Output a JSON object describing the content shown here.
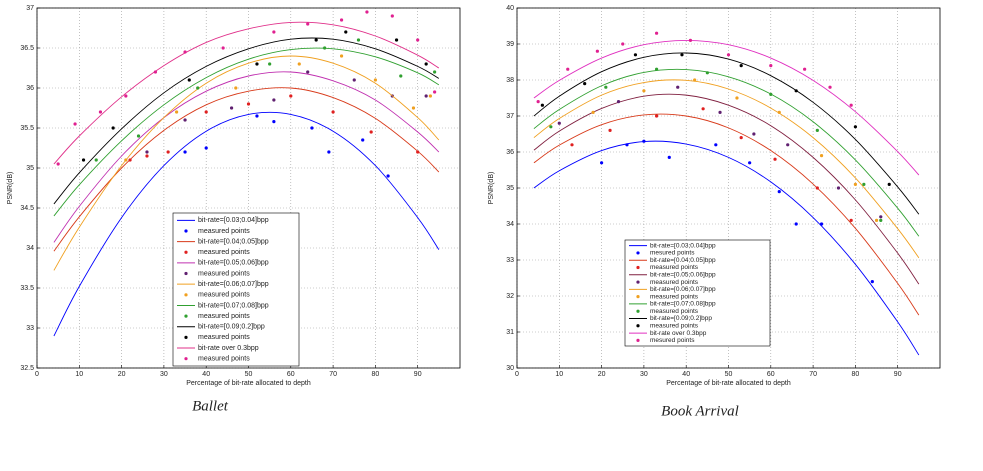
{
  "chart_data": [
    {
      "type": "line",
      "caption": "Ballet",
      "xlabel": "Percentage of bit-rate allocated to depth",
      "ylabel": "PSNR(dB)",
      "xlim": [
        0,
        100
      ],
      "xticks": [
        0,
        10,
        20,
        30,
        40,
        50,
        60,
        70,
        80,
        90
      ],
      "ylim": [
        32.5,
        37
      ],
      "yticks": [
        32.5,
        33,
        33.5,
        34,
        34.5,
        35,
        35.5,
        36,
        36.5,
        37
      ],
      "grid": true,
      "series": [
        {
          "name": "bit-rate=[0.03;0.04]bpp",
          "type": "line",
          "color": "#0000ff",
          "x": [
            4,
            10,
            20,
            30,
            40,
            50,
            60,
            70,
            80,
            90,
            95
          ],
          "values": [
            32.9,
            33.52,
            34.38,
            35.03,
            35.46,
            35.67,
            35.67,
            35.46,
            35.03,
            34.38,
            33.98
          ]
        },
        {
          "name": "measured points",
          "type": "scatter",
          "color": "#0000ff",
          "x": [
            35,
            40,
            52,
            56,
            65,
            69,
            77,
            83
          ],
          "values": [
            35.2,
            35.25,
            35.65,
            35.58,
            35.5,
            35.2,
            35.35,
            34.9
          ]
        },
        {
          "name": "bit-rate=[0.04;0.05]bpp",
          "type": "line",
          "color": "#d83a1a",
          "x": [
            4,
            10,
            20,
            30,
            40,
            50,
            60,
            70,
            80,
            90,
            95
          ],
          "values": [
            33.96,
            34.39,
            35.0,
            35.47,
            35.79,
            35.96,
            36.0,
            35.88,
            35.62,
            35.21,
            34.95
          ]
        },
        {
          "name": "measured points",
          "type": "scatter",
          "color": "#e02020",
          "x": [
            22,
            26,
            31,
            40,
            50,
            60,
            70,
            79,
            90
          ],
          "values": [
            35.1,
            35.15,
            35.2,
            35.7,
            35.8,
            35.9,
            35.7,
            35.45,
            35.2
          ]
        },
        {
          "name": "bit-rate=[0.05;0.06]bpp",
          "type": "line",
          "color": "#c030b0",
          "x": [
            4,
            10,
            20,
            30,
            40,
            50,
            60,
            70,
            80,
            90,
            95
          ],
          "values": [
            34.07,
            34.52,
            35.15,
            35.63,
            35.96,
            36.15,
            36.2,
            36.09,
            35.85,
            35.45,
            35.2
          ]
        },
        {
          "name": "measured points",
          "type": "scatter",
          "color": "#602070",
          "x": [
            26,
            35,
            46,
            56,
            64,
            75,
            84,
            92
          ],
          "values": [
            35.2,
            35.6,
            35.75,
            35.85,
            36.2,
            36.1,
            35.9,
            35.9
          ]
        },
        {
          "name": "bit-rate=[0.06;0.07]bpp",
          "type": "line",
          "color": "#f0a020",
          "x": [
            4,
            10,
            20,
            30,
            40,
            50,
            60,
            70,
            80,
            90,
            95
          ],
          "values": [
            33.72,
            34.26,
            35.03,
            35.63,
            36.06,
            36.31,
            36.4,
            36.31,
            36.06,
            35.63,
            35.35
          ]
        },
        {
          "name": "measured points",
          "type": "scatter",
          "color": "#f0a020",
          "x": [
            21,
            33,
            47,
            62,
            72,
            80,
            89,
            93
          ],
          "values": [
            35.1,
            35.7,
            36.0,
            36.3,
            36.4,
            36.1,
            35.75,
            35.9
          ]
        },
        {
          "name": "bit-rate=[0.07;0.08]bpp",
          "type": "line",
          "color": "#30a030",
          "x": [
            4,
            10,
            20,
            30,
            40,
            50,
            60,
            70,
            80,
            90,
            95
          ],
          "values": [
            34.4,
            34.79,
            35.34,
            35.79,
            36.13,
            36.36,
            36.48,
            36.49,
            36.39,
            36.19,
            36.04
          ]
        },
        {
          "name": "measured points",
          "type": "scatter",
          "color": "#30a030",
          "x": [
            14,
            24,
            38,
            55,
            68,
            76,
            86,
            94
          ],
          "values": [
            35.1,
            35.4,
            36.0,
            36.3,
            36.5,
            36.6,
            36.15,
            36.2
          ]
        },
        {
          "name": "bit-rate=[0.09;0.2]bpp",
          "type": "line",
          "color": "#000000",
          "x": [
            4,
            10,
            20,
            30,
            40,
            50,
            60,
            70,
            80,
            90,
            95
          ],
          "values": [
            34.55,
            34.94,
            35.49,
            35.94,
            36.27,
            36.49,
            36.61,
            36.61,
            36.49,
            36.27,
            36.12
          ]
        },
        {
          "name": "measured points",
          "type": "scatter",
          "color": "#000000",
          "x": [
            11,
            18,
            36,
            52,
            66,
            73,
            85,
            92
          ],
          "values": [
            35.1,
            35.5,
            36.1,
            36.3,
            36.6,
            36.7,
            36.6,
            36.3
          ]
        },
        {
          "name": "bit-rate over 0.3bpp",
          "type": "line",
          "color": "#e0308a",
          "x": [
            4,
            10,
            20,
            30,
            40,
            50,
            60,
            70,
            80,
            90,
            95
          ],
          "values": [
            35.05,
            35.4,
            35.89,
            36.28,
            36.57,
            36.74,
            36.82,
            36.79,
            36.65,
            36.41,
            36.25
          ]
        },
        {
          "name": "measured points",
          "type": "scatter",
          "color": "#e02090",
          "x": [
            5,
            9,
            15,
            21,
            28,
            35,
            44,
            56,
            64,
            72,
            78,
            84,
            90,
            94
          ],
          "values": [
            35.05,
            35.55,
            35.7,
            35.9,
            36.2,
            36.45,
            36.5,
            36.7,
            36.8,
            36.85,
            36.95,
            36.9,
            36.6,
            35.95
          ]
        }
      ]
    },
    {
      "type": "line",
      "caption": "Book Arrival",
      "xlabel": "Percentage of bit-rate allocated to depth",
      "ylabel": "PSNR(dB)",
      "xlim": [
        0,
        100
      ],
      "xticks": [
        0,
        10,
        20,
        30,
        40,
        50,
        60,
        70,
        80,
        90
      ],
      "ylim": [
        30,
        40
      ],
      "yticks": [
        30,
        31,
        32,
        33,
        34,
        35,
        36,
        37,
        38,
        39,
        40
      ],
      "grid": true,
      "series": [
        {
          "name": "bit-rate=[0.03;0.04]bpp",
          "type": "line",
          "color": "#0000ff",
          "x": [
            4,
            10,
            20,
            30,
            40,
            50,
            60,
            70,
            80,
            90,
            95
          ],
          "values": [
            35.0,
            35.48,
            36.04,
            36.29,
            36.22,
            35.85,
            35.17,
            34.18,
            32.88,
            31.28,
            30.36
          ]
        },
        {
          "name": "mesured points",
          "type": "scatter",
          "color": "#0000ff",
          "x": [
            20,
            26,
            30,
            36,
            47,
            55,
            62,
            66,
            72,
            84
          ],
          "values": [
            35.7,
            36.2,
            36.3,
            35.85,
            36.2,
            35.7,
            34.9,
            34.0,
            34.0,
            32.4
          ]
        },
        {
          "name": "bit-rate=[0.04;0.05]bpp",
          "type": "line",
          "color": "#d83a1a",
          "x": [
            4,
            10,
            20,
            30,
            40,
            50,
            60,
            70,
            80,
            90,
            95
          ],
          "values": [
            35.7,
            36.19,
            36.76,
            37.03,
            37.0,
            36.67,
            36.04,
            35.11,
            33.88,
            32.35,
            31.47
          ]
        },
        {
          "name": "measured points",
          "type": "scatter",
          "color": "#e02020",
          "x": [
            13,
            22,
            33,
            44,
            53,
            61,
            71,
            79
          ],
          "values": [
            36.2,
            36.6,
            37.0,
            37.2,
            36.4,
            35.8,
            35.0,
            34.1
          ]
        },
        {
          "name": "bit-rate=[0.05;0.06]bpp",
          "type": "line",
          "color": "#802040",
          "x": [
            4,
            10,
            20,
            30,
            40,
            50,
            60,
            70,
            80,
            90,
            95
          ],
          "values": [
            36.05,
            36.58,
            37.21,
            37.55,
            37.58,
            37.3,
            36.73,
            35.85,
            34.67,
            33.19,
            32.33
          ]
        },
        {
          "name": "measured points",
          "type": "scatter",
          "color": "#602070",
          "x": [
            10,
            24,
            38,
            48,
            56,
            64,
            76,
            86
          ],
          "values": [
            36.8,
            37.4,
            37.8,
            37.1,
            36.5,
            36.2,
            35.0,
            34.2
          ]
        },
        {
          "name": "bit-rate=[0.06;0.07]bpp",
          "type": "line",
          "color": "#f0a020",
          "x": [
            4,
            10,
            20,
            30,
            40,
            50,
            60,
            70,
            80,
            90,
            95
          ],
          "values": [
            36.4,
            36.93,
            37.58,
            37.93,
            37.99,
            37.75,
            37.22,
            36.4,
            35.28,
            33.87,
            33.06
          ]
        },
        {
          "name": "measured points",
          "type": "scatter",
          "color": "#f0a020",
          "x": [
            18,
            30,
            42,
            52,
            62,
            72,
            80,
            85
          ],
          "values": [
            37.1,
            37.7,
            38.0,
            37.5,
            37.1,
            35.9,
            35.1,
            34.1
          ]
        },
        {
          "name": "bit-rate=[0.07;0.08]bpp",
          "type": "line",
          "color": "#30a030",
          "x": [
            4,
            10,
            20,
            30,
            40,
            50,
            60,
            70,
            80,
            90,
            95
          ],
          "values": [
            36.65,
            37.18,
            37.84,
            38.21,
            38.29,
            38.09,
            37.61,
            36.84,
            35.78,
            34.44,
            33.66
          ]
        },
        {
          "name": "measured points",
          "type": "scatter",
          "color": "#30a030",
          "x": [
            8,
            21,
            33,
            45,
            60,
            71,
            82,
            86
          ],
          "values": [
            36.7,
            37.8,
            38.3,
            38.2,
            37.6,
            36.6,
            35.1,
            34.1
          ]
        },
        {
          "name": "bit-rate=[0.09;0.2]bpp",
          "type": "line",
          "color": "#000000",
          "x": [
            4,
            10,
            20,
            30,
            40,
            50,
            60,
            70,
            80,
            90,
            95
          ],
          "values": [
            37.0,
            37.55,
            38.23,
            38.63,
            38.75,
            38.58,
            38.12,
            37.38,
            36.35,
            35.03,
            34.27
          ]
        },
        {
          "name": "measured points",
          "type": "scatter",
          "color": "#000000",
          "x": [
            6,
            16,
            28,
            39,
            53,
            66,
            80,
            88
          ],
          "values": [
            37.3,
            37.9,
            38.7,
            38.7,
            38.4,
            37.7,
            36.7,
            35.1
          ]
        },
        {
          "name": "bit-rate over 0.3bpp",
          "type": "line",
          "color": "#e030c0",
          "x": [
            4,
            10,
            20,
            30,
            40,
            50,
            60,
            70,
            80,
            90,
            95
          ],
          "values": [
            37.5,
            37.99,
            38.61,
            38.98,
            39.1,
            38.98,
            38.61,
            37.99,
            37.12,
            36.01,
            35.36
          ]
        },
        {
          "name": "mesured points",
          "type": "scatter",
          "color": "#e02090",
          "x": [
            5,
            12,
            19,
            25,
            33,
            41,
            50,
            60,
            68,
            74,
            79
          ],
          "values": [
            37.4,
            38.3,
            38.8,
            39.0,
            39.3,
            39.1,
            38.7,
            38.4,
            38.3,
            37.8,
            37.3
          ]
        }
      ]
    }
  ]
}
